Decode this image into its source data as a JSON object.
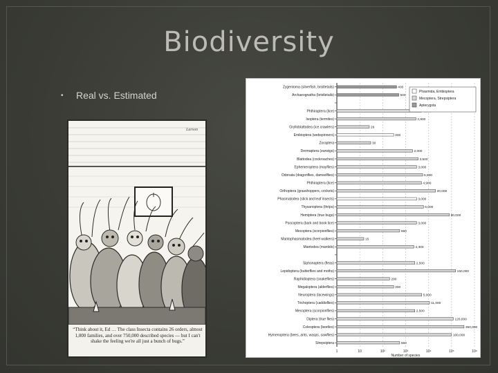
{
  "slide": {
    "title": "Biodiversity",
    "bullets": [
      {
        "text": "Real vs. Estimated"
      }
    ]
  },
  "cartoon": {
    "caption": "“Think about it, Ed … The class Insecta contains 26 orders, almost 1,000 families, and over 750,000 described species — but I can't shake the feeling we're all just a bunch of bugs.”",
    "signature": "Larson"
  },
  "chart_data": {
    "type": "bar",
    "orientation": "horizontal",
    "xscale": "log",
    "xlim": [
      1,
      1000000
    ],
    "xticks": [
      "1",
      "10",
      "10²",
      "10³",
      "10⁴",
      "10⁵",
      "10⁶"
    ],
    "xlabel": "Number of species",
    "legend_position": "top-right",
    "legend": [
      {
        "name": "Phasmida, Embioptera",
        "color": "#ffffff"
      },
      {
        "name": "Mecoptera, Strepsiptera",
        "color": "#d8d8d8"
      },
      {
        "name": "Apterygota",
        "color": "#9a9a9a"
      }
    ],
    "categories": [
      "Zygentoma (silverfish, bristletails)",
      "Archaeognatha (bristletails)",
      "",
      "Phthiraptera (lice)",
      "Isoptera (termites)",
      "Grylloblattodea (ice crawlers)",
      "Embioptera (webspinners)",
      "Zoraptera",
      "Dermaptera (earwigs)",
      "Blattodea (cockroaches)",
      "Ephemeroptera (mayflies)",
      "Odonata (dragonflies, damselflies)",
      "Phthiraptera (lice)",
      "Orthoptera (grasshoppers, crickets)",
      "Phasmatodea (stick and leaf insects)",
      "Thysanoptera (thrips)",
      "Hemiptera (true bugs)",
      "Psocoptera (bark and book lice)",
      "Mecoptera (scorpionflies)",
      "Mantophasmatodea (heel walkers)",
      "Mantodea (mantids)",
      "",
      "Siphonaptera (fleas)",
      "Lepidoptera (butterflies and moths)",
      "Raphidioptera (snakeflies)",
      "Megaloptera (alderflies)",
      "Neuroptera (lacewings)",
      "Trichoptera (caddisflies)",
      "Mecoptera (scorpionflies)",
      "Diptera (true flies)",
      "Coleoptera (beetles)",
      "Hymenoptera (bees, ants, wasps, sawflies)",
      "Strepsiptera"
    ],
    "values": [
      400,
      500,
      null,
      4900,
      2800,
      26,
      300,
      30,
      2000,
      3500,
      3000,
      5500,
      4900,
      20000,
      3000,
      6000,
      80000,
      3000,
      550,
      15,
      2300,
      null,
      2500,
      150000,
      200,
      300,
      5000,
      11000,
      2500,
      120000,
      350000,
      100000,
      550
    ],
    "value_labels": [
      "400",
      "500",
      "",
      "4,900",
      "2,800",
      "26",
      "300",
      "30",
      "2,000",
      "3,500",
      "3,000",
      "5,500",
      "4,900",
      "20,000",
      "3,000",
      "6,000",
      "80,000",
      "3,000",
      "550",
      "15",
      "2,300",
      "",
      "2,500",
      "150,000",
      "200",
      "300",
      "5,000",
      "11,000",
      "2,500",
      "120,000",
      "350,000",
      "100,000",
      "550"
    ],
    "bar_colors": [
      "#9a9a9a",
      "#9a9a9a",
      "",
      "#d8d8d8",
      "#d8d8d8",
      "#d8d8d8",
      "#ffffff",
      "#d8d8d8",
      "#d8d8d8",
      "#d8d8d8",
      "#d8d8d8",
      "#d8d8d8",
      "#d8d8d8",
      "#d8d8d8",
      "#ffffff",
      "#d8d8d8",
      "#d8d8d8",
      "#d8d8d8",
      "#d8d8d8",
      "#d8d8d8",
      "#d8d8d8",
      "",
      "#d8d8d8",
      "#d8d8d8",
      "#d8d8d8",
      "#d8d8d8",
      "#d8d8d8",
      "#d8d8d8",
      "#d8d8d8",
      "#d8d8d8",
      "#d8d8d8",
      "#d8d8d8",
      "#d8d8d8"
    ]
  }
}
